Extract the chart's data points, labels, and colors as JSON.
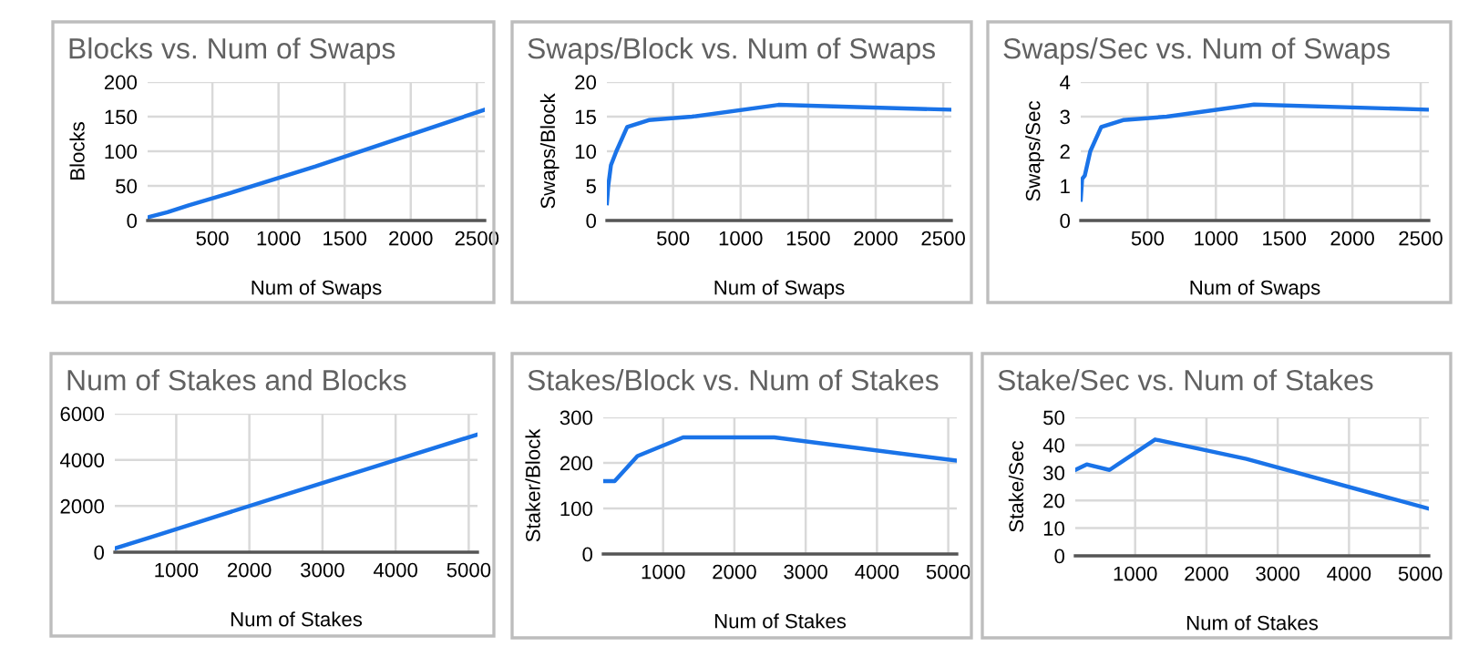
{
  "chart_data": [
    {
      "type": "line",
      "title": "Blocks vs. Num of Swaps",
      "xlabel": "Num of Swaps",
      "ylabel": "Blocks",
      "x": [
        10,
        20,
        40,
        80,
        160,
        320,
        640,
        1280,
        2560
      ],
      "series": [
        {
          "color": "#1a73e8",
          "values": [
            4,
            5,
            6,
            8,
            12,
            22,
            40,
            78,
            160
          ]
        }
      ],
      "xlim": [
        10,
        2560
      ],
      "xticks": [
        500,
        1000,
        1500,
        2000,
        2500
      ],
      "ylim": [
        0,
        200
      ],
      "yticks": [
        0,
        50,
        100,
        150,
        200
      ],
      "grid": true,
      "marker": "none",
      "line_style": "solid"
    },
    {
      "type": "line",
      "title": "Swaps/Block vs. Num of Swaps",
      "xlabel": "Num of Swaps",
      "ylabel": "Swaps/Block",
      "x": [
        10,
        20,
        40,
        80,
        160,
        320,
        640,
        1280,
        2560
      ],
      "series": [
        {
          "color": "#1a73e8",
          "values": [
            2.5,
            5,
            8,
            10,
            13.5,
            14.5,
            15,
            16.7,
            16
          ]
        }
      ],
      "xlim": [
        10,
        2560
      ],
      "xticks": [
        500,
        1000,
        1500,
        2000,
        2500
      ],
      "ylim": [
        0,
        20
      ],
      "yticks": [
        0,
        5,
        10,
        15,
        20
      ],
      "grid": true,
      "marker": "none",
      "line_style": "solid"
    },
    {
      "type": "line",
      "title": "Swaps/Sec vs. Num of Swaps",
      "xlabel": "Num of Swaps",
      "ylabel": "Swaps/Sec",
      "x": [
        10,
        20,
        40,
        80,
        160,
        320,
        640,
        1280,
        2560
      ],
      "series": [
        {
          "color": "#1a73e8",
          "values": [
            0.6,
            1.2,
            1.3,
            2.0,
            2.7,
            2.9,
            3.0,
            3.35,
            3.2
          ]
        }
      ],
      "xlim": [
        10,
        2560
      ],
      "xticks": [
        500,
        1000,
        1500,
        2000,
        2500
      ],
      "ylim": [
        0,
        4
      ],
      "yticks": [
        0,
        1,
        2,
        3,
        4
      ],
      "grid": true,
      "marker": "none",
      "line_style": "solid"
    },
    {
      "type": "line",
      "title": "Num of Stakes and Blocks",
      "xlabel": "Num of Stakes",
      "x": [
        160,
        320,
        640,
        1280,
        2560,
        5120
      ],
      "series": [
        {
          "color": "#1a73e8",
          "values": [
            160,
            320,
            640,
            1280,
            2560,
            5100
          ]
        }
      ],
      "xlim": [
        160,
        5120
      ],
      "xticks": [
        1000,
        2000,
        3000,
        4000,
        5000
      ],
      "ylim": [
        0,
        6000
      ],
      "yticks": [
        0,
        2000,
        4000,
        6000
      ],
      "grid": true,
      "marker": "none",
      "line_style": "solid"
    },
    {
      "type": "line",
      "title": "Stakes/Block vs. Num of Stakes",
      "xlabel": "Num of Stakes",
      "ylabel": "Staker/Block",
      "x": [
        160,
        320,
        640,
        1280,
        2560,
        5120
      ],
      "series": [
        {
          "color": "#1a73e8",
          "values": [
            160,
            160,
            215,
            256,
            256,
            205
          ]
        }
      ],
      "xlim": [
        160,
        5120
      ],
      "xticks": [
        1000,
        2000,
        3000,
        4000,
        5000
      ],
      "ylim": [
        0,
        300
      ],
      "yticks": [
        0,
        100,
        200,
        300
      ],
      "grid": true,
      "marker": "none",
      "line_style": "solid"
    },
    {
      "type": "line",
      "title": "Stake/Sec vs. Num of Stakes",
      "xlabel": "Num of Stakes",
      "ylabel": "Stake/Sec",
      "x": [
        160,
        320,
        640,
        1280,
        2560,
        5120
      ],
      "series": [
        {
          "color": "#1a73e8",
          "values": [
            31,
            33,
            31,
            42,
            35,
            17
          ]
        }
      ],
      "xlim": [
        160,
        5120
      ],
      "xticks": [
        1000,
        2000,
        3000,
        4000,
        5000
      ],
      "ylim": [
        0,
        50
      ],
      "yticks": [
        0,
        10,
        20,
        30,
        40,
        50
      ],
      "grid": true,
      "marker": "none",
      "line_style": "solid"
    }
  ]
}
